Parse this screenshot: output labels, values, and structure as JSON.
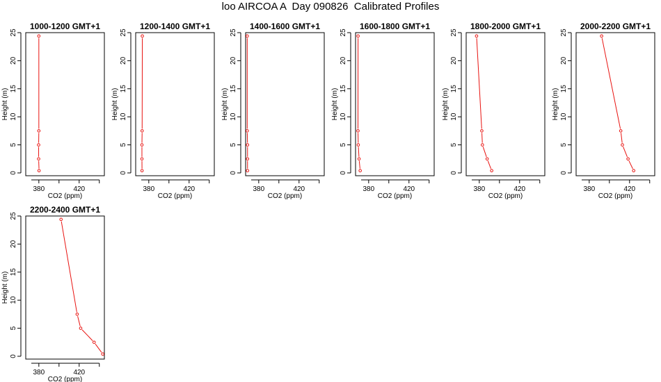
{
  "figure": {
    "title": "loo AIRCOA A  Day 090826  Calibrated Profiles"
  },
  "colors": {
    "series": "#e8120f",
    "axis": "#000000"
  },
  "chart_data": [
    {
      "type": "line",
      "title": "1000-1200 GMT+1",
      "xlabel": "CO2 (ppm)",
      "ylabel": "Height (m)",
      "xlim": [
        367,
        445
      ],
      "ylim": [
        -0.5,
        25
      ],
      "xticks": [
        380,
        420
      ],
      "yticks": [
        0,
        5,
        10,
        15,
        20,
        25
      ],
      "x": [
        380.0,
        380.0,
        379.8,
        379.8,
        380.2
      ],
      "y": [
        24.4,
        7.5,
        5.0,
        2.5,
        0.4
      ]
    },
    {
      "type": "line",
      "title": "1200-1400 GMT+1",
      "xlabel": "CO2 (ppm)",
      "ylabel": "Height (m)",
      "xlim": [
        367,
        445
      ],
      "ylim": [
        -0.5,
        25
      ],
      "xticks": [
        380,
        420
      ],
      "yticks": [
        0,
        5,
        10,
        15,
        20,
        25
      ],
      "x": [
        373.6,
        373.4,
        373.2,
        373.2,
        373.3
      ],
      "y": [
        24.4,
        7.5,
        5.0,
        2.5,
        0.4
      ]
    },
    {
      "type": "line",
      "title": "1400-1600 GMT+1",
      "xlabel": "CO2 (ppm)",
      "ylabel": "Height (m)",
      "xlim": [
        367,
        445
      ],
      "ylim": [
        -0.5,
        25
      ],
      "xticks": [
        380,
        420
      ],
      "yticks": [
        0,
        5,
        10,
        15,
        20,
        25
      ],
      "x": [
        368.6,
        368.6,
        368.9,
        368.9,
        368.9
      ],
      "y": [
        24.4,
        7.5,
        5.0,
        2.5,
        0.4
      ]
    },
    {
      "type": "line",
      "title": "1600-1800 GMT+1",
      "xlabel": "CO2 (ppm)",
      "ylabel": "Height (m)",
      "xlim": [
        367,
        445
      ],
      "ylim": [
        -0.5,
        25
      ],
      "xticks": [
        380,
        420
      ],
      "yticks": [
        0,
        5,
        10,
        15,
        20,
        25
      ],
      "x": [
        369.5,
        369.4,
        369.7,
        370.5,
        371.6
      ],
      "y": [
        24.4,
        7.5,
        5.0,
        2.5,
        0.4
      ]
    },
    {
      "type": "line",
      "title": "1800-2000 GMT+1",
      "xlabel": "CO2 (ppm)",
      "ylabel": "Height (m)",
      "xlim": [
        367,
        445
      ],
      "ylim": [
        -0.5,
        25
      ],
      "xticks": [
        380,
        420
      ],
      "yticks": [
        0,
        5,
        10,
        15,
        20,
        25
      ],
      "x": [
        377.3,
        382.5,
        383.1,
        387.8,
        392.3
      ],
      "y": [
        24.4,
        7.5,
        5.0,
        2.5,
        0.4
      ]
    },
    {
      "type": "line",
      "title": "2000-2200 GMT+1",
      "xlabel": "CO2 (ppm)",
      "ylabel": "Height (m)",
      "xlim": [
        367,
        445
      ],
      "ylim": [
        -0.5,
        25
      ],
      "xticks": [
        380,
        420
      ],
      "yticks": [
        0,
        5,
        10,
        15,
        20,
        25
      ],
      "x": [
        392.3,
        411.3,
        412.9,
        418.5,
        424.1
      ],
      "y": [
        24.4,
        7.5,
        5.0,
        2.5,
        0.4
      ]
    },
    {
      "type": "line",
      "title": "2200-2400 GMT+1",
      "xlabel": "CO2 (ppm)",
      "ylabel": "Height (m)",
      "xlim": [
        367,
        445
      ],
      "ylim": [
        -0.5,
        25
      ],
      "xticks": [
        380,
        420
      ],
      "yticks": [
        0,
        5,
        10,
        15,
        20,
        25
      ],
      "x": [
        402.0,
        418.0,
        421.5,
        434.8,
        443.4
      ],
      "y": [
        24.4,
        7.5,
        5.0,
        2.5,
        0.4
      ]
    }
  ]
}
